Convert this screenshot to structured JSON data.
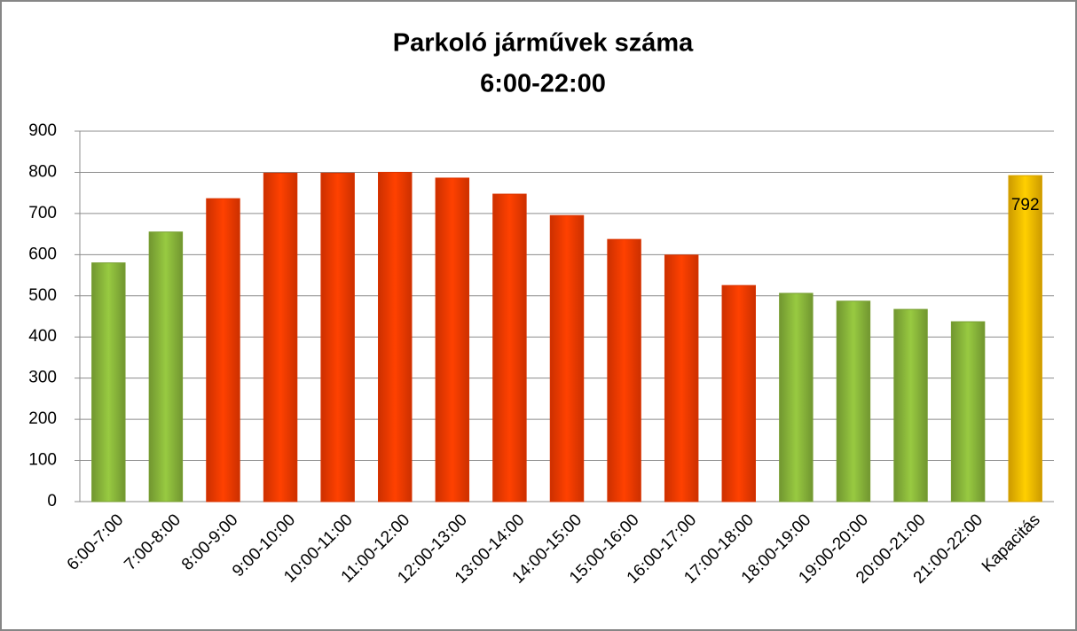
{
  "chart_data": {
    "type": "bar",
    "title": [
      "Parkoló járművek száma",
      "6:00-22:00"
    ],
    "categories": [
      "6:00-7:00",
      "7:00-8:00",
      "8:00-9:00",
      "9:00-10:00",
      "10:00-11:00",
      "11:00-12:00",
      "12:00-13:00",
      "13:00-14:00",
      "14:00-15:00",
      "15:00-16:00",
      "16:00-17:00",
      "17:00-18:00",
      "18:00-19:00",
      "19:00-20:00",
      "20:00-21:00",
      "21:00-22:00",
      "Kapacitás"
    ],
    "values": [
      580,
      655,
      736,
      798,
      798,
      800,
      786,
      747,
      695,
      637,
      599,
      525,
      506,
      487,
      467,
      437,
      792
    ],
    "colors": [
      "#8dbb3c",
      "#8dbb3c",
      "#ff3c00",
      "#ff3c00",
      "#ff3c00",
      "#ff3c00",
      "#ff3c00",
      "#ff3c00",
      "#ff3c00",
      "#ff3c00",
      "#ff3c00",
      "#ff3c00",
      "#8dbb3c",
      "#8dbb3c",
      "#8dbb3c",
      "#8dbb3c",
      "#ffc000"
    ],
    "data_labels": [
      false,
      false,
      false,
      false,
      false,
      false,
      false,
      false,
      false,
      false,
      false,
      false,
      false,
      false,
      false,
      false,
      true
    ],
    "ylim": [
      0,
      900
    ],
    "yticks": [
      0,
      100,
      200,
      300,
      400,
      500,
      600,
      700,
      800,
      900
    ],
    "grid": true
  }
}
